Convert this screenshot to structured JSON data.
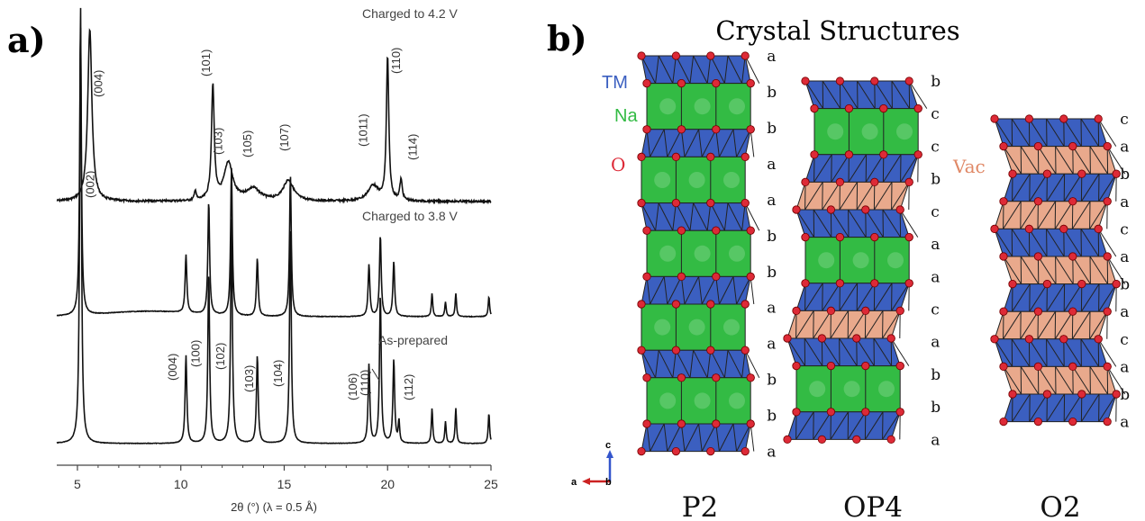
{
  "panel_a": {
    "label": "a)",
    "xlabel": "2θ (°)  (λ = 0.5 Å)",
    "xticks": [
      "5",
      "10",
      "15",
      "20",
      "25"
    ],
    "curves": [
      {
        "name": "Charged to 4.2 V",
        "peaks": [
          {
            "x": 5.6,
            "h": 1.0,
            "w": 0.12
          },
          {
            "x": 10.7,
            "h": 0.06,
            "w": 0.05
          },
          {
            "x": 11.55,
            "h": 0.66,
            "w": 0.08
          },
          {
            "x": 12.3,
            "h": 0.22,
            "w": 0.25
          },
          {
            "x": 13.5,
            "h": 0.07,
            "w": 0.4
          },
          {
            "x": 15.2,
            "h": 0.12,
            "w": 0.3
          },
          {
            "x": 19.3,
            "h": 0.09,
            "w": 0.3
          },
          {
            "x": 20.0,
            "h": 0.83,
            "w": 0.07
          },
          {
            "x": 20.65,
            "h": 0.12,
            "w": 0.07
          }
        ],
        "labels": [
          {
            "text": "(004)",
            "x": 6.2
          },
          {
            "text": "(101)",
            "x": 11.4
          },
          {
            "text": "(103)",
            "x": 12.0
          },
          {
            "text": "(105)",
            "x": 13.4
          },
          {
            "text": "(107)",
            "x": 15.2
          },
          {
            "text": "(1011)",
            "x": 19.0
          },
          {
            "text": "(110)",
            "x": 20.6
          },
          {
            "text": "(114)",
            "x": 21.4
          }
        ]
      },
      {
        "name": "Charged to 3.8 V",
        "peaks": [
          {
            "x": 5.15,
            "h": 1.0,
            "w": 0.05
          },
          {
            "x": 10.25,
            "h": 0.2,
            "w": 0.05
          },
          {
            "x": 11.35,
            "h": 0.39,
            "w": 0.05
          },
          {
            "x": 12.45,
            "h": 0.51,
            "w": 0.05
          },
          {
            "x": 13.7,
            "h": 0.2,
            "w": 0.05
          },
          {
            "x": 15.3,
            "h": 0.49,
            "w": 0.05
          },
          {
            "x": 19.1,
            "h": 0.18,
            "w": 0.05
          },
          {
            "x": 19.65,
            "h": 0.28,
            "w": 0.05
          },
          {
            "x": 20.3,
            "h": 0.19,
            "w": 0.05
          },
          {
            "x": 22.15,
            "h": 0.08,
            "w": 0.04
          },
          {
            "x": 22.8,
            "h": 0.05,
            "w": 0.04
          },
          {
            "x": 23.3,
            "h": 0.08,
            "w": 0.04
          },
          {
            "x": 24.9,
            "h": 0.07,
            "w": 0.04
          }
        ],
        "labels": []
      },
      {
        "name": "As-prepared",
        "peaks": [
          {
            "x": 5.15,
            "h": 1.0,
            "w": 0.05
          },
          {
            "x": 10.25,
            "h": 0.2,
            "w": 0.05
          },
          {
            "x": 11.35,
            "h": 0.39,
            "w": 0.05
          },
          {
            "x": 12.45,
            "h": 0.51,
            "w": 0.05
          },
          {
            "x": 13.7,
            "h": 0.2,
            "w": 0.05
          },
          {
            "x": 15.3,
            "h": 0.49,
            "w": 0.05
          },
          {
            "x": 19.1,
            "h": 0.18,
            "w": 0.05
          },
          {
            "x": 19.65,
            "h": 0.34,
            "w": 0.05
          },
          {
            "x": 20.3,
            "h": 0.19,
            "w": 0.05
          },
          {
            "x": 20.55,
            "h": 0.05,
            "w": 0.04
          },
          {
            "x": 22.15,
            "h": 0.08,
            "w": 0.04
          },
          {
            "x": 22.8,
            "h": 0.05,
            "w": 0.04
          },
          {
            "x": 23.3,
            "h": 0.08,
            "w": 0.04
          },
          {
            "x": 24.9,
            "h": 0.07,
            "w": 0.04
          }
        ],
        "labels": [
          {
            "text": "(002)",
            "x": 5.8
          },
          {
            "text": "(004)",
            "x": 9.8
          },
          {
            "text": "(100)",
            "x": 10.9
          },
          {
            "text": "(102)",
            "x": 12.1
          },
          {
            "text": "(103)",
            "x": 13.5
          },
          {
            "text": "(104)",
            "x": 14.9
          },
          {
            "text": "(106)",
            "x": 18.5
          },
          {
            "text": "(110)",
            "x": 19.1
          },
          {
            "text": "(112)",
            "x": 21.2
          }
        ]
      }
    ]
  },
  "panel_b": {
    "label": "b)",
    "title": "Crystal Structures",
    "legend": {
      "tm": "TM",
      "na": "Na",
      "o": "O",
      "vac": "Vac"
    },
    "colors": {
      "tm": "#3b5fc0",
      "na": "#33bb44",
      "vac": "#e9a98c",
      "o": "#dd2a37"
    },
    "axes": {
      "c": "c",
      "a": "a",
      "b": "b"
    },
    "structures": [
      {
        "name": "P2",
        "layers": [
          "tm",
          "na",
          "tm",
          "na",
          "tm",
          "na",
          "tm",
          "na",
          "tm",
          "na",
          "tm"
        ],
        "letters": [
          "a",
          "b",
          "b",
          "a",
          "a",
          "b",
          "b",
          "a",
          "a",
          "b",
          "b",
          "a"
        ]
      },
      {
        "name": "OP4",
        "layers": [
          "tm",
          "na",
          "tm",
          "vac",
          "tm",
          "na",
          "tm",
          "vac",
          "tm",
          "na",
          "tm"
        ],
        "letters": [
          "b",
          "c",
          "c",
          "b",
          "c",
          "a",
          "a",
          "c",
          "a",
          "b",
          "b",
          "a"
        ]
      },
      {
        "name": "O2",
        "layers": [
          "tm",
          "vac",
          "tm",
          "vac",
          "tm",
          "vac",
          "tm",
          "vac",
          "tm",
          "vac",
          "tm"
        ],
        "letters": [
          "c",
          "a",
          "b",
          "a",
          "c",
          "a",
          "b",
          "a",
          "c",
          "a",
          "b",
          "a"
        ]
      }
    ]
  }
}
